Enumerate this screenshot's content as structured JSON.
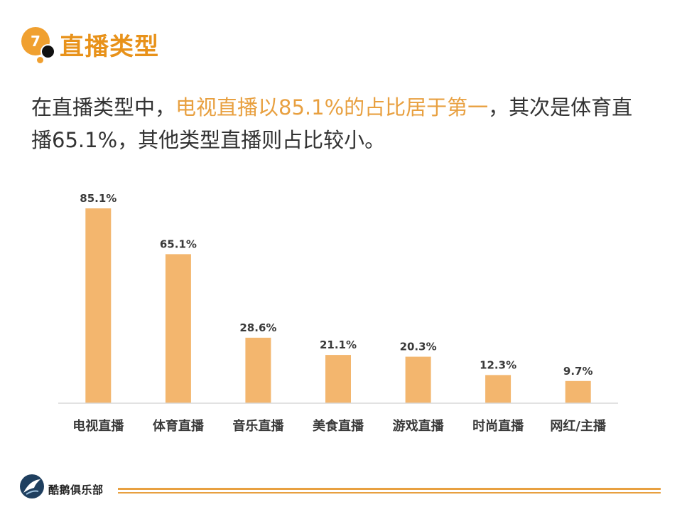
{
  "header": {
    "number": "7",
    "title": "直播类型"
  },
  "summary": {
    "part1": "在直播类型中，",
    "highlight": "电视直播以85.1%的占比居于第一",
    "part2": "，其次是体育直播65.1%，其他类型直播则占比较小。"
  },
  "colors": {
    "accent": "#E8921A",
    "bar": "#F3B66E",
    "footer_line": "#E8A040"
  },
  "footer": {
    "brand": "酷鹅俱乐部"
  },
  "chart_data": {
    "type": "bar",
    "categories": [
      "电视直播",
      "体育直播",
      "音乐直播",
      "美食直播",
      "游戏直播",
      "时尚直播",
      "网红/主播"
    ],
    "values": [
      85.1,
      65.1,
      28.6,
      21.1,
      20.3,
      12.3,
      9.7
    ],
    "data_labels": [
      "85.1%",
      "65.1%",
      "28.6%",
      "21.1%",
      "20.3%",
      "12.3%",
      "9.7%"
    ],
    "title": "",
    "xlabel": "",
    "ylabel": "",
    "ylim": [
      0,
      85.1
    ],
    "grid": false,
    "legend": "none"
  }
}
